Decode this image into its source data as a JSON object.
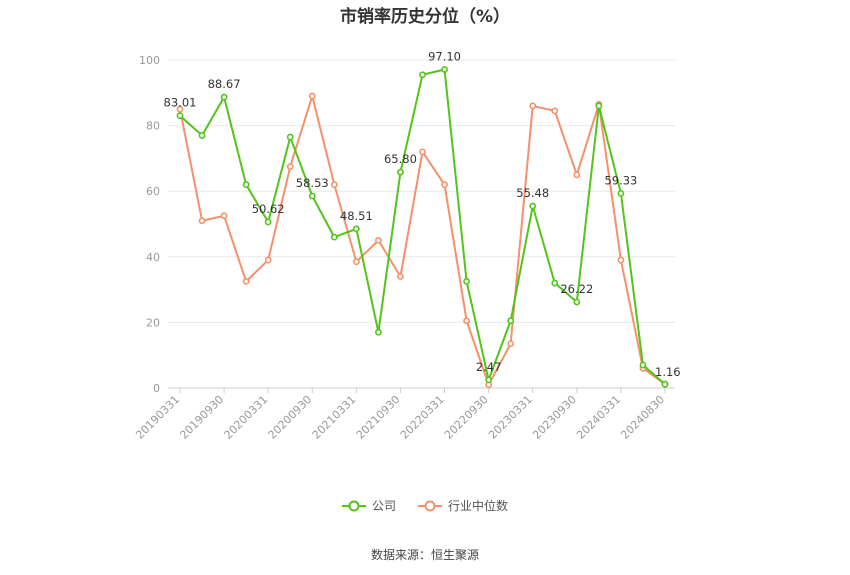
{
  "title": "市销率历史分位（%）",
  "source": "数据来源：恒生聚源",
  "colors": {
    "company": "#52c41a",
    "industry": "#f5916a",
    "grid": "#e8e8e8",
    "axis": "#cccccc"
  },
  "chart_data": {
    "type": "line",
    "title": "市销率历史分位（%）",
    "xlabel": "",
    "ylabel": "",
    "ylim": [
      0,
      100
    ],
    "yticks": [
      "0",
      "20",
      "40",
      "60",
      "80",
      "100"
    ],
    "grid": true,
    "legend_position": "bottom",
    "x_tick_labels": [
      "20190331",
      "20190930",
      "20200331",
      "20200930",
      "20210331",
      "20210930",
      "20220331",
      "20220930",
      "20230331",
      "20230930",
      "20240331",
      "20240830"
    ],
    "x_tick_indices": [
      0,
      2,
      4,
      6,
      8,
      10,
      12,
      14,
      16,
      18,
      20,
      22
    ],
    "point_count": 23,
    "series": [
      {
        "name": "公司",
        "color": "#52c41a",
        "values": [
          83.01,
          77,
          88.67,
          62,
          50.62,
          76.5,
          58.53,
          46,
          48.51,
          17,
          65.8,
          95.5,
          97.1,
          32.5,
          2.47,
          20.5,
          55.48,
          32,
          26.22,
          86,
          59.33,
          7,
          1.16
        ],
        "labels": [
          "83.01",
          "",
          "88.67",
          "",
          "50.62",
          "",
          "58.53",
          "",
          "48.51",
          "",
          "65.80",
          "",
          "97.10",
          "",
          "2.47",
          "",
          "55.48",
          "",
          "26.22",
          "",
          "59.33",
          "",
          "1.16"
        ]
      },
      {
        "name": "行业中位数",
        "color": "#f5916a",
        "values": [
          85,
          51,
          52.5,
          32.5,
          39,
          67.5,
          89,
          62,
          38.5,
          45,
          34,
          72,
          62,
          20.5,
          1,
          13.5,
          86,
          84.5,
          65,
          86.5,
          39,
          6,
          1.16
        ]
      }
    ]
  }
}
